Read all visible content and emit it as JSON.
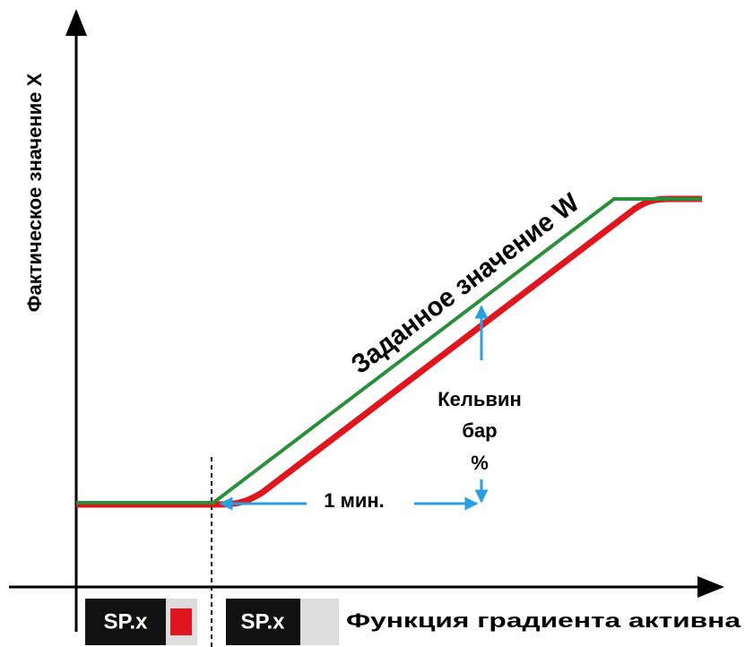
{
  "y_axis_label": "Фактическое значение X",
  "setpoint_label": "Заданное значение W",
  "units": [
    "Кельвин",
    "бар",
    "%"
  ],
  "time_label": "1 мин.",
  "indicators": [
    "SP.x",
    "SP.x"
  ],
  "status_text": "Функция градиента активна"
}
